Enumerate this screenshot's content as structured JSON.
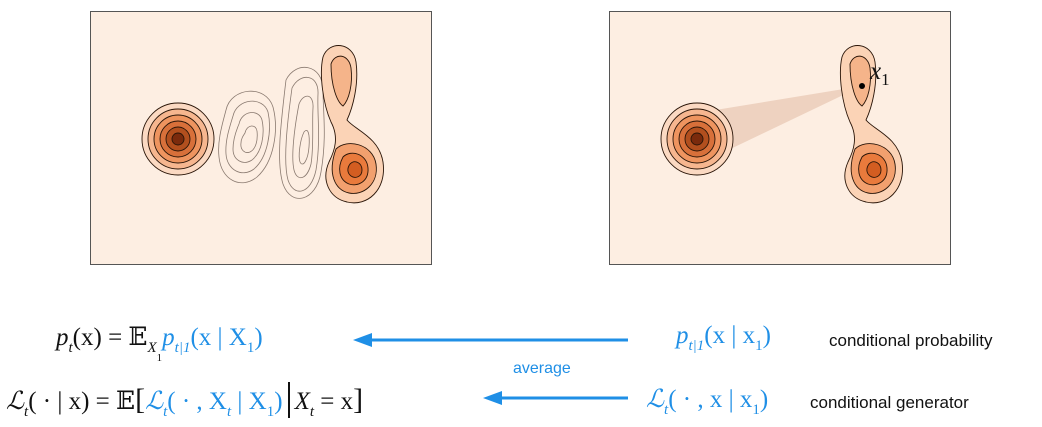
{
  "colors": {
    "panel_bg": "#fdeee2",
    "contour_outer": "#f8d3b8",
    "contour_mid": "#f0a171",
    "contour_dark": "#c95f2b",
    "contour_core": "#8a3210",
    "arrow": "#1f8fe6",
    "highlight": "#1f8fe6"
  },
  "right_panel": {
    "point_label_var": "x",
    "point_label_sub": "1"
  },
  "equations": {
    "top_left": {
      "p": "p",
      "t": "t",
      "x_open": "(x) = ",
      "E": "𝔼",
      "X1": "X",
      "X1_sub": "1",
      "p_cond": "p",
      "cond_sub": "t|1",
      "tail": "(x | X",
      "tail_sub": "1",
      "close": ")"
    },
    "bottom_left": {
      "L": "ℒ",
      "t": "t",
      "lhs": "( · | x) = ",
      "E": "𝔼",
      "bracket_open": "[",
      "L2": "ℒ",
      "t2": "t",
      "mid": "( · , X",
      "mid_sub": "t",
      "mid2": " | X",
      "mid2_sub": "1",
      "mid2_close": ")",
      "cond": "X",
      "cond_sub": "t",
      "cond_eq": " = x",
      "bracket_close": "]"
    },
    "top_right": {
      "p": "p",
      "sub": "t|1",
      "args": "(x | x",
      "args_sub": "1",
      "close": ")"
    },
    "bottom_right": {
      "L": "ℒ",
      "t": "t",
      "args": "( · , x | x",
      "args_sub": "1",
      "close": ")"
    }
  },
  "labels": {
    "average": "average",
    "conditional_probability": "conditional probability",
    "conditional_generator": "conditional generator"
  }
}
